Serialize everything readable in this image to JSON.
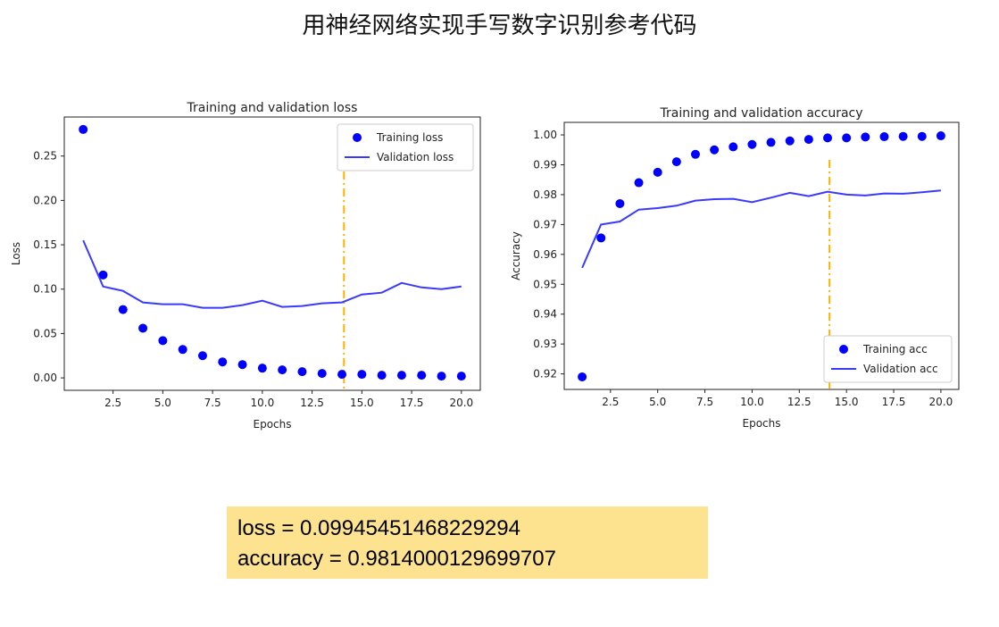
{
  "slide": {
    "title": "用神经网络实现手写数字识别参考代码"
  },
  "results": {
    "loss_line": "loss = 0.09945451468229294",
    "accuracy_line": "accuracy = 0.9814000129699707"
  },
  "chart_data": [
    {
      "id": "loss",
      "type": "scatter+line",
      "title": "Training and validation loss",
      "xlabel": "Epochs",
      "ylabel": "Loss",
      "xlim": [
        0.05,
        20.95
      ],
      "ylim": [
        -0.014,
        0.294
      ],
      "xticks": [
        2.5,
        5.0,
        7.5,
        10.0,
        12.5,
        15.0,
        17.5,
        20.0
      ],
      "xtick_labels": [
        "2.5",
        "5.0",
        "7.5",
        "10.0",
        "12.5",
        "15.0",
        "17.5",
        "20.0"
      ],
      "yticks": [
        0.0,
        0.05,
        0.1,
        0.15,
        0.2,
        0.25
      ],
      "ytick_labels": [
        "0.00",
        "0.05",
        "0.10",
        "0.15",
        "0.20",
        "0.25"
      ],
      "legend_position": "top-right",
      "vline": {
        "x": 14.1,
        "color": "#ffb300",
        "style": "dashdot"
      },
      "x": [
        1,
        2,
        3,
        4,
        5,
        6,
        7,
        8,
        9,
        10,
        11,
        12,
        13,
        14,
        15,
        16,
        17,
        18,
        19,
        20
      ],
      "series": [
        {
          "name": "Training loss",
          "kind": "points",
          "color": "#0000ff",
          "values": [
            0.28,
            0.116,
            0.077,
            0.056,
            0.042,
            0.032,
            0.025,
            0.018,
            0.015,
            0.011,
            0.009,
            0.007,
            0.005,
            0.004,
            0.004,
            0.003,
            0.003,
            0.003,
            0.002,
            0.002
          ]
        },
        {
          "name": "Validation loss",
          "kind": "line",
          "color": "#3a3aff",
          "values": [
            0.155,
            0.103,
            0.098,
            0.085,
            0.083,
            0.083,
            0.079,
            0.079,
            0.082,
            0.087,
            0.08,
            0.081,
            0.084,
            0.085,
            0.094,
            0.096,
            0.107,
            0.102,
            0.1,
            0.103
          ]
        }
      ]
    },
    {
      "id": "acc",
      "type": "scatter+line",
      "title": "Training and validation accuracy",
      "xlabel": "Epochs",
      "ylabel": "Accuracy",
      "xlim": [
        0.05,
        20.95
      ],
      "ylim": [
        0.9148,
        1.0042
      ],
      "xticks": [
        2.5,
        5.0,
        7.5,
        10.0,
        12.5,
        15.0,
        17.5,
        20.0
      ],
      "xtick_labels": [
        "2.5",
        "5.0",
        "7.5",
        "10.0",
        "12.5",
        "15.0",
        "17.5",
        "20.0"
      ],
      "yticks": [
        0.92,
        0.93,
        0.94,
        0.95,
        0.96,
        0.97,
        0.98,
        0.99,
        1.0
      ],
      "ytick_labels": [
        "0.92",
        "0.93",
        "0.94",
        "0.95",
        "0.96",
        "0.97",
        "0.98",
        "0.99",
        "1.00"
      ],
      "legend_position": "bottom-right",
      "vline": {
        "x": 14.1,
        "color": "#ffb300",
        "style": "dashdot"
      },
      "x": [
        1,
        2,
        3,
        4,
        5,
        6,
        7,
        8,
        9,
        10,
        11,
        12,
        13,
        14,
        15,
        16,
        17,
        18,
        19,
        20
      ],
      "series": [
        {
          "name": "Training acc",
          "kind": "points",
          "color": "#0000ff",
          "values": [
            0.919,
            0.9655,
            0.977,
            0.984,
            0.9875,
            0.991,
            0.9935,
            0.995,
            0.996,
            0.9968,
            0.9975,
            0.998,
            0.9985,
            0.999,
            0.999,
            0.9993,
            0.9994,
            0.9995,
            0.9995,
            0.9997
          ]
        },
        {
          "name": "Validation acc",
          "kind": "line",
          "color": "#3a3aff",
          "values": [
            0.9555,
            0.97,
            0.971,
            0.975,
            0.9755,
            0.9763,
            0.978,
            0.9785,
            0.9786,
            0.9775,
            0.979,
            0.9806,
            0.9795,
            0.981,
            0.98,
            0.9797,
            0.9804,
            0.9803,
            0.9808,
            0.9814
          ]
        }
      ]
    }
  ]
}
